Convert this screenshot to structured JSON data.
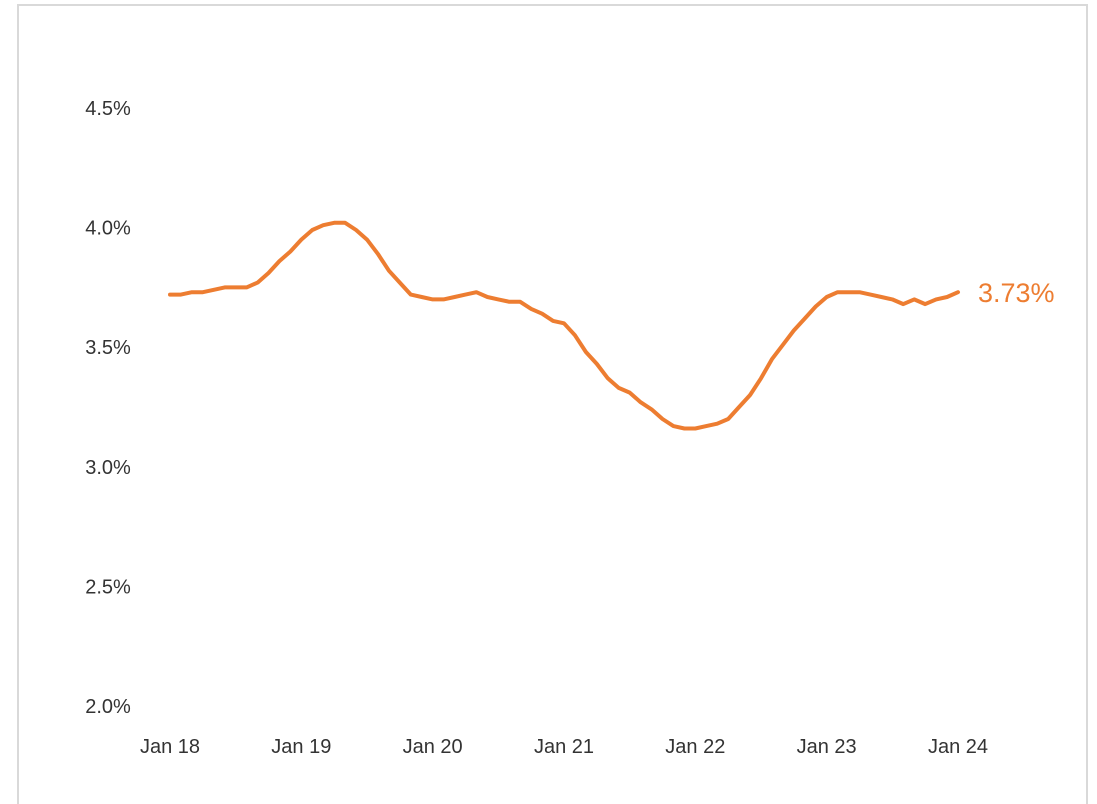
{
  "chart_data": {
    "type": "line",
    "title": "",
    "xlabel": "",
    "ylabel": "",
    "ylim": [
      2.0,
      4.5
    ],
    "grid": false,
    "y_ticks": [
      "2.0%",
      "2.5%",
      "3.0%",
      "3.5%",
      "4.0%",
      "4.5%"
    ],
    "y_tick_values": [
      2.0,
      2.5,
      3.0,
      3.5,
      4.0,
      4.5
    ],
    "x_ticks": [
      "Jan 18",
      "Jan 19",
      "Jan 20",
      "Jan 21",
      "Jan 22",
      "Jan 23",
      "Jan 24"
    ],
    "x_tick_values": [
      "2018-01",
      "2019-01",
      "2020-01",
      "2021-01",
      "2022-01",
      "2023-01",
      "2024-01"
    ],
    "series": [
      {
        "color": "#ED7D31",
        "end_label": "3.73%",
        "points": [
          [
            "2018-01",
            3.72
          ],
          [
            "2018-02",
            3.72
          ],
          [
            "2018-03",
            3.73
          ],
          [
            "2018-04",
            3.73
          ],
          [
            "2018-05",
            3.74
          ],
          [
            "2018-06",
            3.75
          ],
          [
            "2018-07",
            3.75
          ],
          [
            "2018-08",
            3.75
          ],
          [
            "2018-09",
            3.77
          ],
          [
            "2018-10",
            3.81
          ],
          [
            "2018-11",
            3.86
          ],
          [
            "2018-12",
            3.9
          ],
          [
            "2019-01",
            3.95
          ],
          [
            "2019-02",
            3.99
          ],
          [
            "2019-03",
            4.01
          ],
          [
            "2019-04",
            4.02
          ],
          [
            "2019-05",
            4.02
          ],
          [
            "2019-06",
            3.99
          ],
          [
            "2019-07",
            3.95
          ],
          [
            "2019-08",
            3.89
          ],
          [
            "2019-09",
            3.82
          ],
          [
            "2019-10",
            3.77
          ],
          [
            "2019-11",
            3.72
          ],
          [
            "2019-12",
            3.71
          ],
          [
            "2020-01",
            3.7
          ],
          [
            "2020-02",
            3.7
          ],
          [
            "2020-03",
            3.71
          ],
          [
            "2020-04",
            3.72
          ],
          [
            "2020-05",
            3.73
          ],
          [
            "2020-06",
            3.71
          ],
          [
            "2020-07",
            3.7
          ],
          [
            "2020-08",
            3.69
          ],
          [
            "2020-09",
            3.69
          ],
          [
            "2020-10",
            3.66
          ],
          [
            "2020-11",
            3.64
          ],
          [
            "2020-12",
            3.61
          ],
          [
            "2021-01",
            3.6
          ],
          [
            "2021-02",
            3.55
          ],
          [
            "2021-03",
            3.48
          ],
          [
            "2021-04",
            3.43
          ],
          [
            "2021-05",
            3.37
          ],
          [
            "2021-06",
            3.33
          ],
          [
            "2021-07",
            3.31
          ],
          [
            "2021-08",
            3.27
          ],
          [
            "2021-09",
            3.24
          ],
          [
            "2021-10",
            3.2
          ],
          [
            "2021-11",
            3.17
          ],
          [
            "2021-12",
            3.16
          ],
          [
            "2022-01",
            3.16
          ],
          [
            "2022-02",
            3.17
          ],
          [
            "2022-03",
            3.18
          ],
          [
            "2022-04",
            3.2
          ],
          [
            "2022-05",
            3.25
          ],
          [
            "2022-06",
            3.3
          ],
          [
            "2022-07",
            3.37
          ],
          [
            "2022-08",
            3.45
          ],
          [
            "2022-09",
            3.51
          ],
          [
            "2022-10",
            3.57
          ],
          [
            "2022-11",
            3.62
          ],
          [
            "2022-12",
            3.67
          ],
          [
            "2023-01",
            3.71
          ],
          [
            "2023-02",
            3.73
          ],
          [
            "2023-03",
            3.73
          ],
          [
            "2023-04",
            3.73
          ],
          [
            "2023-05",
            3.72
          ],
          [
            "2023-06",
            3.71
          ],
          [
            "2023-07",
            3.7
          ],
          [
            "2023-08",
            3.68
          ],
          [
            "2023-09",
            3.7
          ],
          [
            "2023-10",
            3.68
          ],
          [
            "2023-11",
            3.7
          ],
          [
            "2023-12",
            3.71
          ],
          [
            "2024-01",
            3.73
          ]
        ]
      }
    ]
  }
}
